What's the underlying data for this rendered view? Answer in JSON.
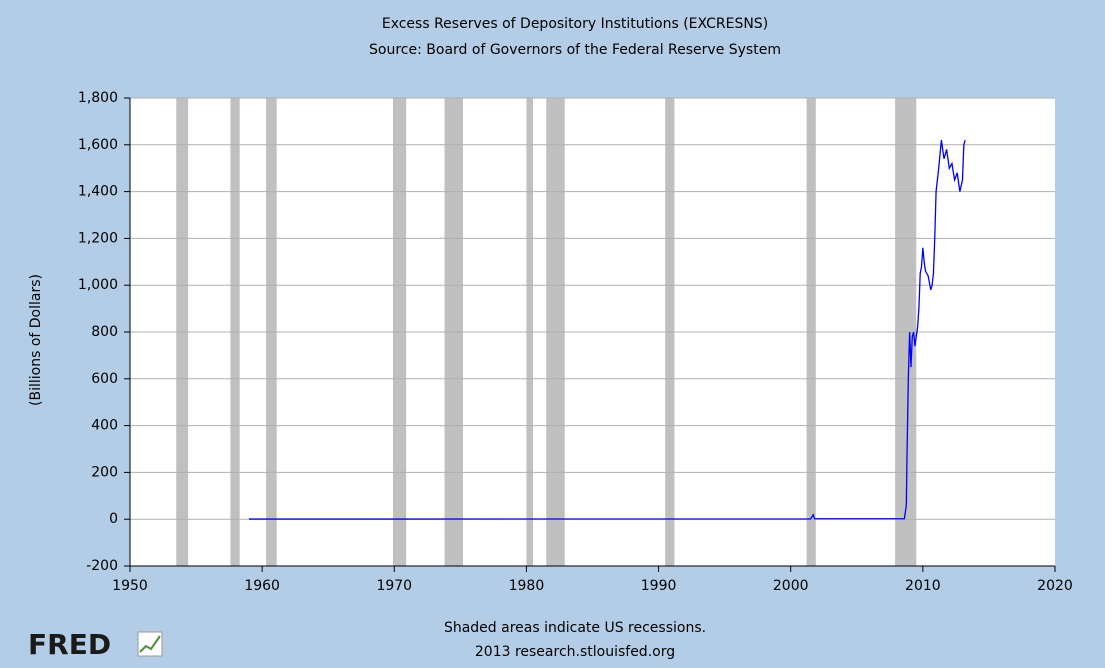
{
  "chart_data": {
    "type": "line",
    "title": "Excess Reserves of Depository Institutions (EXCRESNS)",
    "subtitle": "Source: Board of Governors of the Federal Reserve System",
    "y_label": "(Billions of Dollars)",
    "footer": [
      "Shaded areas indicate US recessions.",
      "2013 research.stlouisfed.org"
    ],
    "logo": "FRED",
    "color": "#0000ff",
    "x": [
      1959.0,
      2001.5,
      2001.7,
      2001.8,
      2008.6,
      2008.75,
      2008.8,
      2008.9,
      2009.0,
      2009.1,
      2009.2,
      2009.3,
      2009.4,
      2009.6,
      2009.7,
      2009.8,
      2009.9,
      2010.0,
      2010.1,
      2010.2,
      2010.4,
      2010.6,
      2010.7,
      2010.8,
      2010.9,
      2011.0,
      2011.2,
      2011.4,
      2011.6,
      2011.8,
      2012.0,
      2012.2,
      2012.4,
      2012.6,
      2012.8,
      2013.0,
      2013.1,
      2013.2
    ],
    "values": [
      0.5,
      1,
      19,
      2,
      2,
      60,
      270,
      600,
      800,
      650,
      780,
      800,
      740,
      820,
      900,
      1050,
      1080,
      1160,
      1100,
      1060,
      1040,
      980,
      1000,
      1050,
      1200,
      1400,
      1500,
      1620,
      1540,
      1580,
      1500,
      1520,
      1450,
      1480,
      1400,
      1450,
      1600,
      1620
    ],
    "recessions": [
      [
        1953.5,
        1954.4
      ],
      [
        1957.6,
        1958.3
      ],
      [
        1960.3,
        1961.1
      ],
      [
        1969.9,
        1970.9
      ],
      [
        1973.8,
        1975.2
      ],
      [
        1980.0,
        1980.5
      ],
      [
        1981.5,
        1982.9
      ],
      [
        1990.5,
        1991.2
      ],
      [
        2001.2,
        2001.9
      ],
      [
        2007.9,
        2009.5
      ]
    ],
    "recession_color": "#c0c0c0",
    "xlim": [
      1950,
      2020
    ],
    "xticks": [
      1950,
      1960,
      1970,
      1980,
      1990,
      2000,
      2010,
      2020
    ],
    "ylim": [
      -200,
      1800
    ],
    "yticks": [
      -200,
      0,
      200,
      400,
      600,
      800,
      {
        "value": 1000,
        "label": "1,000"
      },
      {
        "value": 1200,
        "label": "1,200"
      },
      {
        "value": 1400,
        "label": "1,400"
      },
      {
        "value": 1600,
        "label": "1,600"
      },
      {
        "value": 1800,
        "label": "1,800"
      }
    ],
    "grid": true
  }
}
